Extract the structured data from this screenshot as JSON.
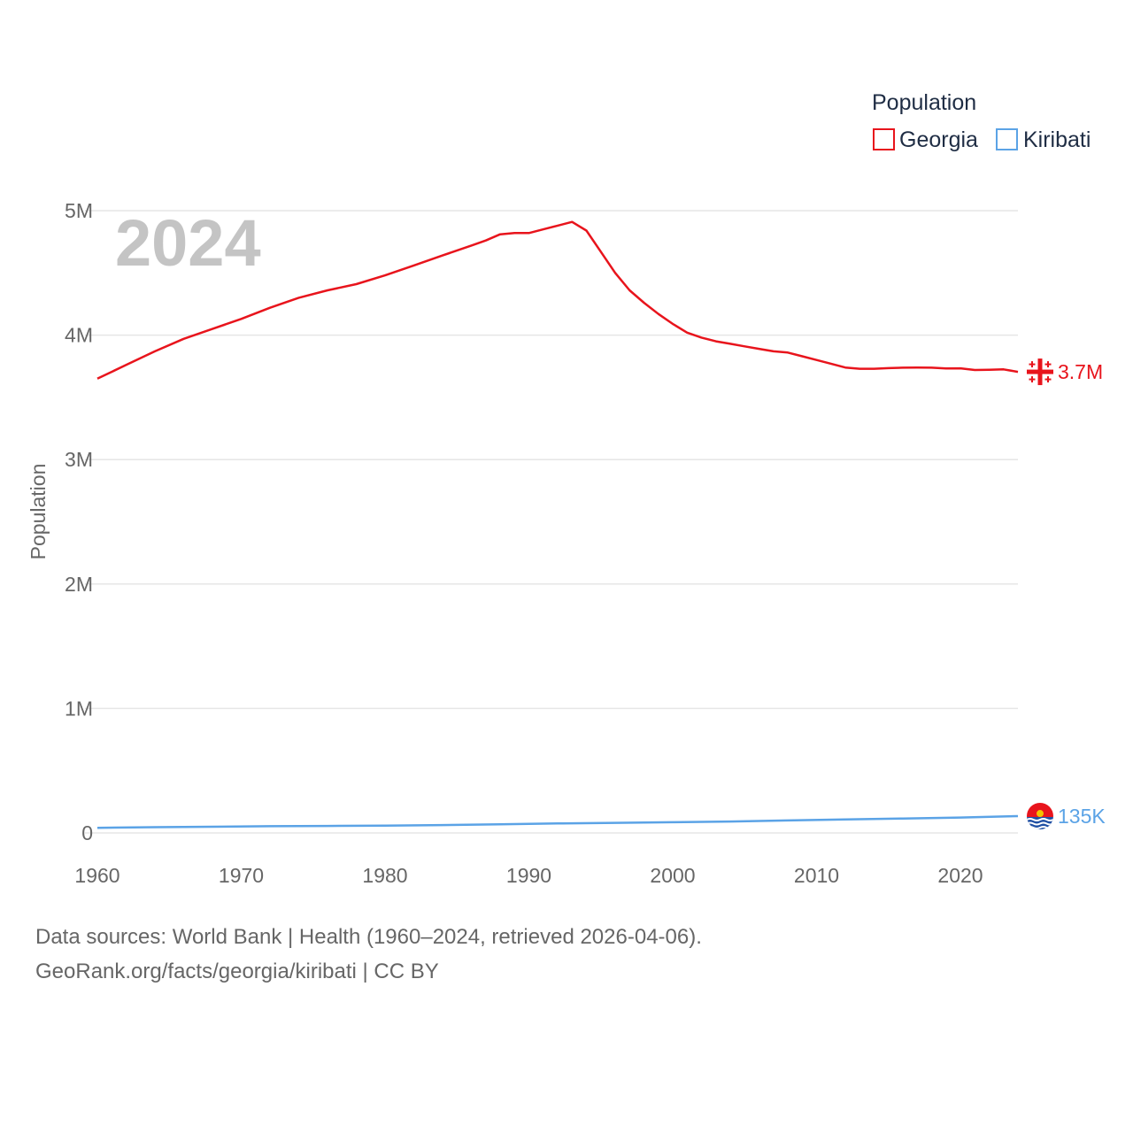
{
  "chart_data": {
    "type": "line",
    "ylabel": "Population",
    "ylim": [
      0,
      5000000
    ],
    "xlim": [
      1960,
      2024
    ],
    "yticks": [
      {
        "value": 0,
        "label": "0"
      },
      {
        "value": 1000000,
        "label": "1M"
      },
      {
        "value": 2000000,
        "label": "2M"
      },
      {
        "value": 3000000,
        "label": "3M"
      },
      {
        "value": 4000000,
        "label": "4M"
      },
      {
        "value": 5000000,
        "label": "5M"
      }
    ],
    "xticks": [
      {
        "value": 1960,
        "label": "1960"
      },
      {
        "value": 1970,
        "label": "1970"
      },
      {
        "value": 1980,
        "label": "1980"
      },
      {
        "value": 1990,
        "label": "1990"
      },
      {
        "value": 2000,
        "label": "2000"
      },
      {
        "value": 2010,
        "label": "2010"
      },
      {
        "value": 2020,
        "label": "2020"
      }
    ],
    "year_label": "2024",
    "legend": {
      "title": "Population",
      "position": "top-right"
    },
    "series": [
      {
        "name": "Georgia",
        "color": "#e8141c",
        "end_label": "3.7M",
        "flag_icon": "georgia-flag-icon",
        "x": [
          1960,
          1962,
          1964,
          1966,
          1968,
          1970,
          1972,
          1974,
          1976,
          1978,
          1980,
          1982,
          1984,
          1986,
          1987,
          1988,
          1989,
          1990,
          1991,
          1992,
          1993,
          1994,
          1995,
          1996,
          1997,
          1998,
          1999,
          2000,
          2001,
          2002,
          2003,
          2004,
          2005,
          2006,
          2007,
          2008,
          2009,
          2010,
          2011,
          2012,
          2013,
          2014,
          2015,
          2016,
          2017,
          2018,
          2019,
          2020,
          2021,
          2022,
          2023,
          2024
        ],
        "values": [
          3650000,
          3760000,
          3870000,
          3970000,
          4050000,
          4130000,
          4220000,
          4300000,
          4360000,
          4410000,
          4480000,
          4560000,
          4640000,
          4720000,
          4760000,
          4810000,
          4820000,
          4820000,
          4850000,
          4880000,
          4910000,
          4840000,
          4670000,
          4500000,
          4360000,
          4260000,
          4170000,
          4090000,
          4020000,
          3980000,
          3950000,
          3930000,
          3910000,
          3890000,
          3870000,
          3860000,
          3830000,
          3800000,
          3770000,
          3740000,
          3730000,
          3730000,
          3735000,
          3738000,
          3739000,
          3738000,
          3732000,
          3733000,
          3720000,
          3722000,
          3725000,
          3705000
        ]
      },
      {
        "name": "Kiribati",
        "color": "#5ba3e6",
        "end_label": "135K",
        "flag_icon": "kiribati-flag-icon",
        "x": [
          1960,
          1964,
          1968,
          1972,
          1976,
          1980,
          1984,
          1988,
          1992,
          1996,
          2000,
          2004,
          2008,
          2012,
          2016,
          2020,
          2024
        ],
        "values": [
          41000,
          46000,
          50000,
          54000,
          56000,
          58000,
          63000,
          70000,
          76000,
          81000,
          86000,
          92000,
          100000,
          108000,
          116000,
          124000,
          135000
        ]
      }
    ]
  },
  "footer": {
    "line1": "Data sources: World Bank | Health (1960–2024, retrieved 2026-04-06).",
    "line2": "GeoRank.org/facts/georgia/kiribati | CC BY"
  }
}
